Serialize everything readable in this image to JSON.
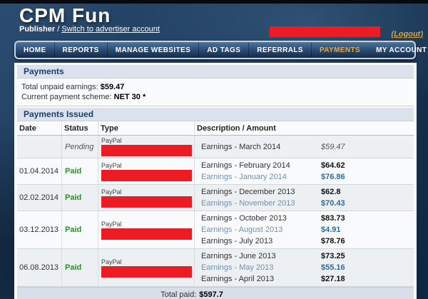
{
  "header": {
    "logo": "CPM Fun",
    "account_type": "Publisher",
    "separator": "/",
    "switch_link": "Switch to advertiser account",
    "logout_label": "(Logout)"
  },
  "nav": {
    "left_items": [
      {
        "label": "HOME",
        "active": false
      },
      {
        "label": "REPORTS",
        "active": false
      },
      {
        "label": "MANAGE WEBSITES",
        "active": false
      },
      {
        "label": "AD TAGS",
        "active": false
      },
      {
        "label": "REFERRALS",
        "active": false
      },
      {
        "label": "PAYMENTS",
        "active": true
      }
    ],
    "right_items": [
      {
        "label": "MY ACCOUNT",
        "active": false
      },
      {
        "label": "FAQ",
        "active": false
      },
      {
        "label": "CONTACT",
        "active": false
      }
    ]
  },
  "payments_summary": {
    "section_title": "Payments",
    "unpaid_label": "Total unpaid earnings:",
    "unpaid_value": "$59.47",
    "scheme_label": "Current payment scheme:",
    "scheme_value": "NET 30 *"
  },
  "payments_issued": {
    "section_title": "Payments Issued",
    "columns": [
      "Date",
      "Status",
      "Type",
      "Description / Amount"
    ],
    "rows": [
      {
        "date": "",
        "status": "Pending",
        "status_style": "pending",
        "type": "PayPal",
        "items": [
          {
            "description": "Earnings - March 2014",
            "amount": "$59.47",
            "style": "pending"
          }
        ]
      },
      {
        "date": "01.04.2014",
        "status": "Paid",
        "status_style": "paid",
        "type": "PayPal",
        "items": [
          {
            "description": "Earnings - February 2014",
            "amount": "$64.62",
            "style": "dark"
          },
          {
            "description": "Earnings - January 2014",
            "amount": "$76.86",
            "style": "blue"
          }
        ]
      },
      {
        "date": "02.02.2014",
        "status": "Paid",
        "status_style": "paid",
        "type": "PayPal",
        "items": [
          {
            "description": "Earnings - December 2013",
            "amount": "$62.8",
            "style": "dark"
          },
          {
            "description": "Earnings - November 2013",
            "amount": "$70.43",
            "style": "blue"
          }
        ]
      },
      {
        "date": "03.12.2013",
        "status": "Paid",
        "status_style": "paid",
        "type": "PayPal",
        "items": [
          {
            "description": "Earnings - October 2013",
            "amount": "$83.73",
            "style": "dark"
          },
          {
            "description": "Earnings - August 2013",
            "amount": "$4.91",
            "style": "blue"
          },
          {
            "description": "Earnings - July 2013",
            "amount": "$78.76",
            "style": "dark"
          }
        ]
      },
      {
        "date": "06.08.2013",
        "status": "Paid",
        "status_style": "paid",
        "type": "PayPal",
        "items": [
          {
            "description": "Earnings - June 2013",
            "amount": "$73.25",
            "style": "dark"
          },
          {
            "description": "Earnings - May 2013",
            "amount": "$55.16",
            "style": "blue"
          },
          {
            "description": "Earnings - April 2013",
            "amount": "$27.18",
            "style": "dark"
          }
        ]
      }
    ],
    "total_label": "Total paid:",
    "total_value": "$597.7"
  },
  "colors": {
    "nav_active": "#f0a332",
    "redaction_red": "#ed1c24",
    "paid_green": "#2c8c2c",
    "blue_amount": "#2b6ca3",
    "section_bar_bg": "#dbe2eb"
  }
}
